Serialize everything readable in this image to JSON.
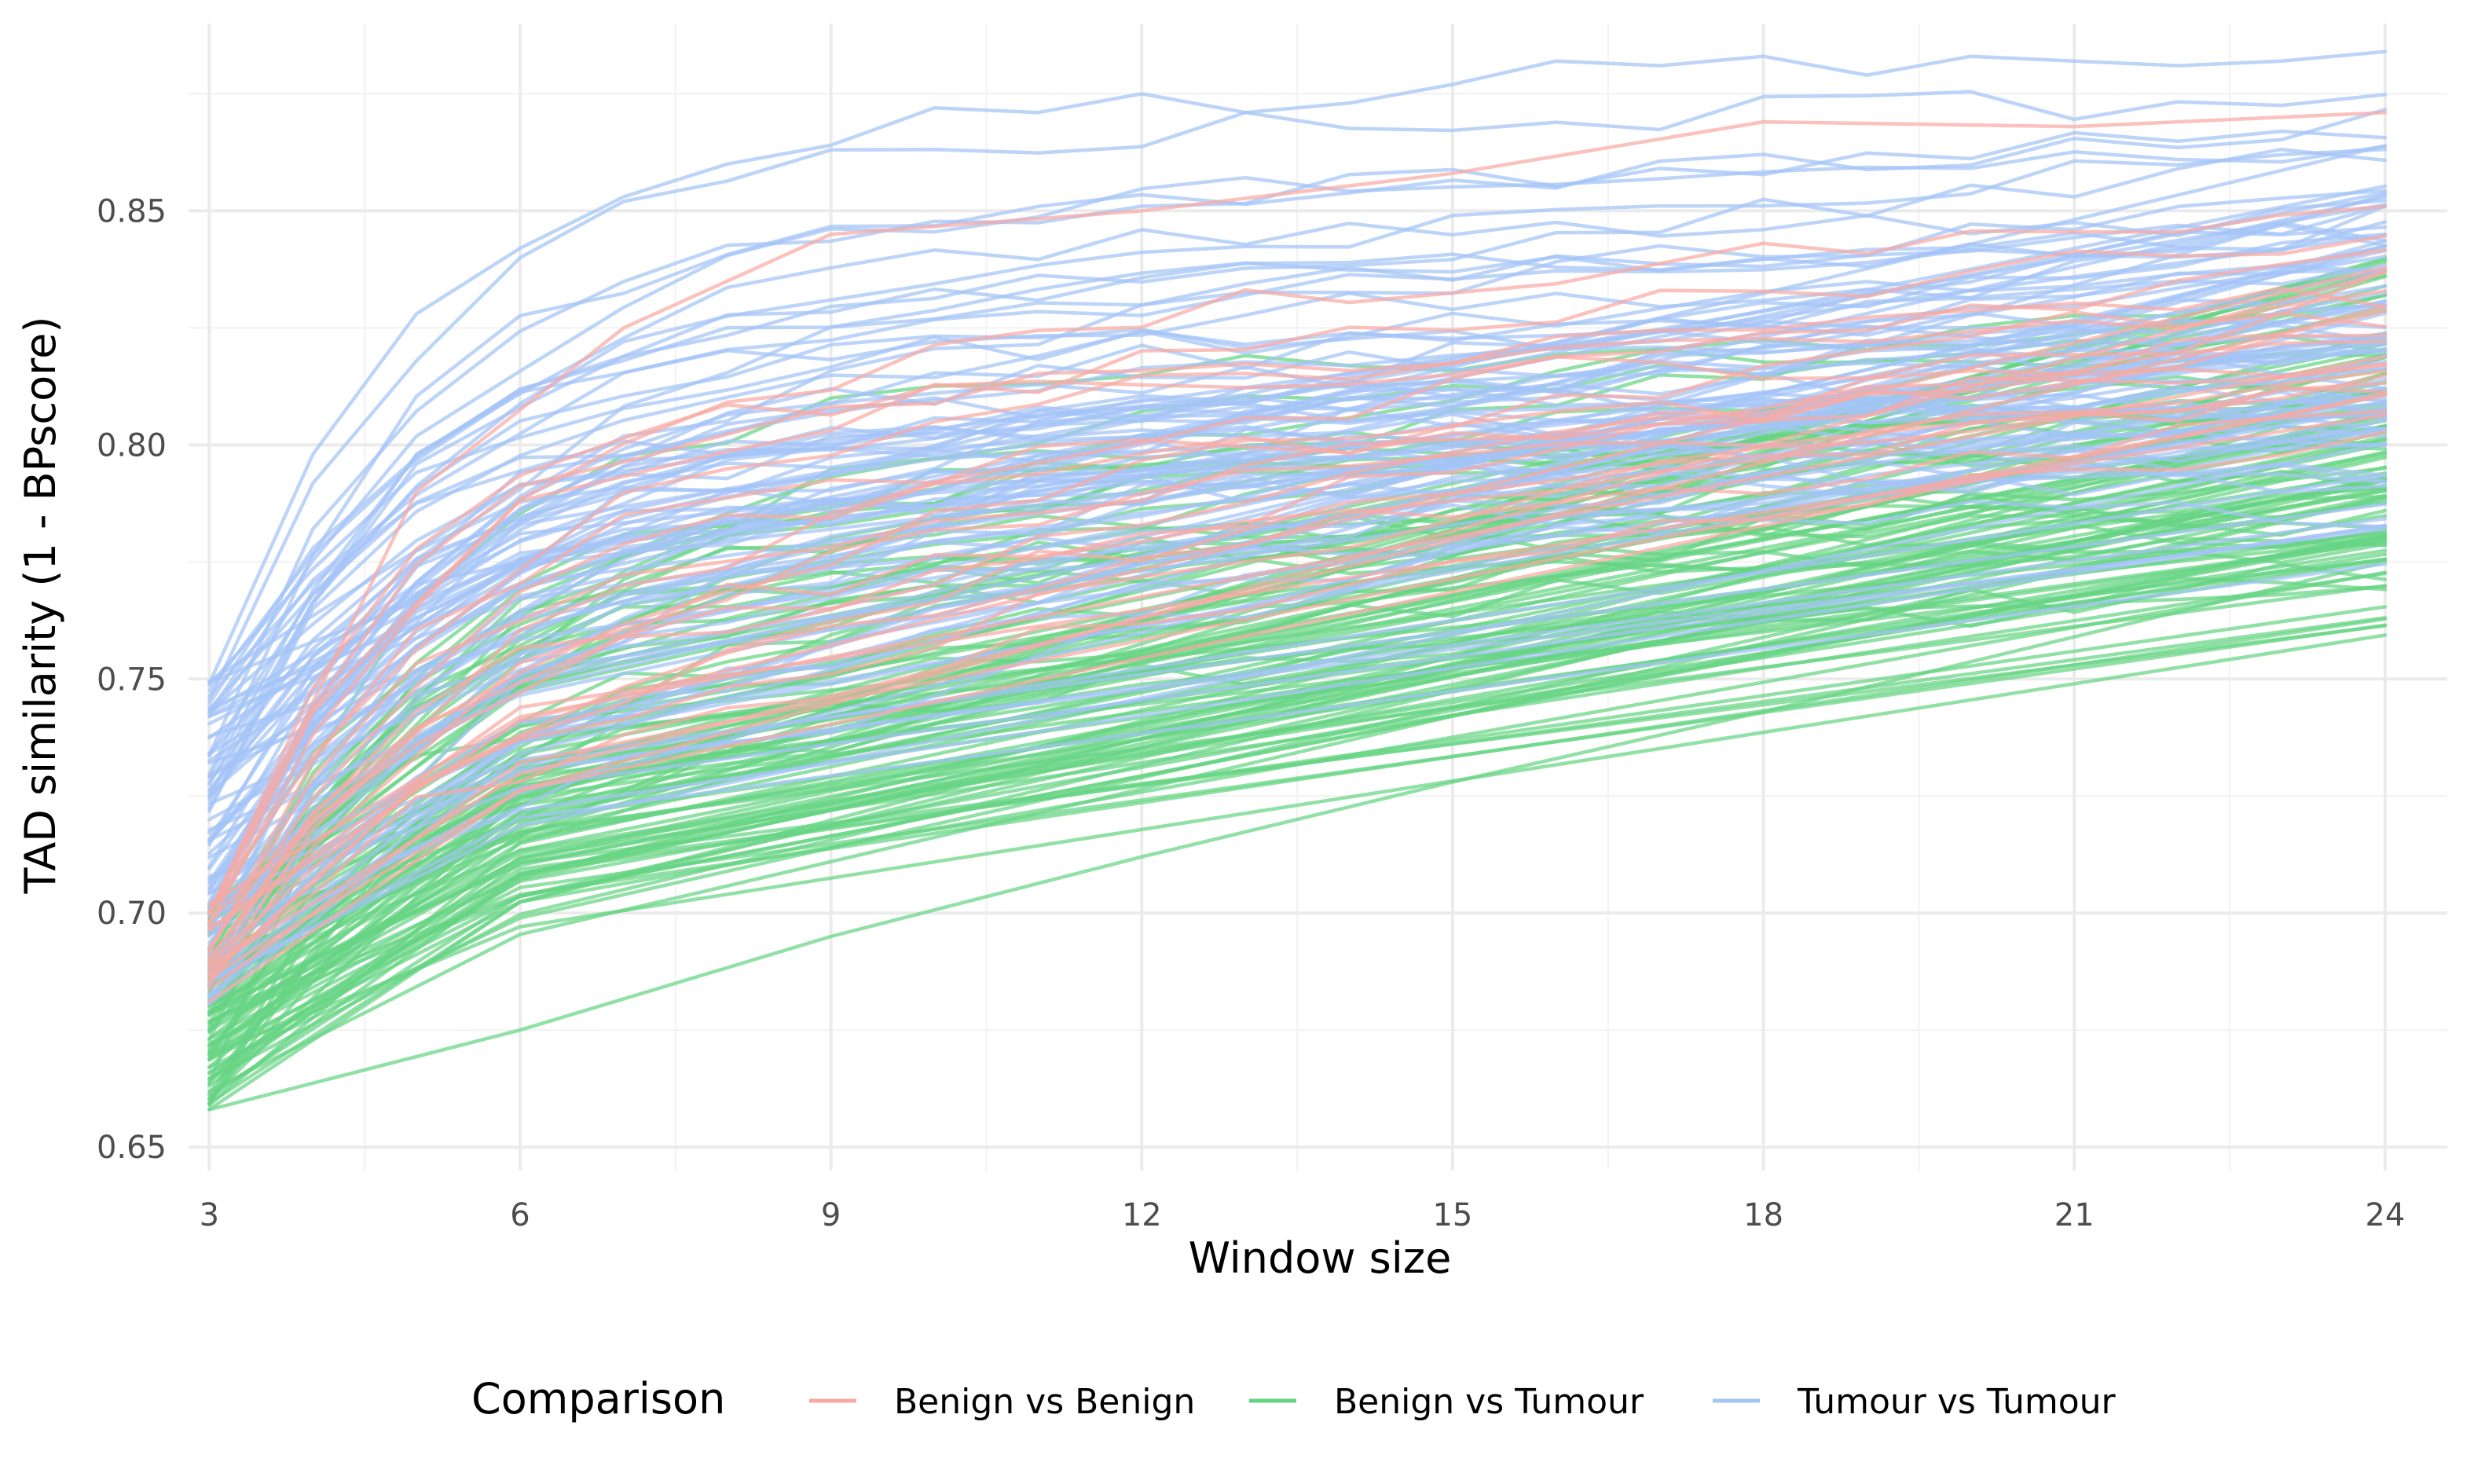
{
  "chart_data": {
    "type": "line",
    "xlabel": "Window size",
    "ylabel": "TAD similarity (1 - BPscore)",
    "xlim": [
      2.8,
      24.6
    ],
    "ylim": [
      0.645,
      0.89
    ],
    "x_ticks": [
      "3",
      "6",
      "9",
      "12",
      "15",
      "18",
      "21",
      "24"
    ],
    "y_ticks": [
      "0.65",
      "0.70",
      "0.75",
      "0.80",
      "0.85"
    ],
    "grid": true,
    "legend": {
      "title": "Comparison",
      "placement": "bottom",
      "entries": [
        {
          "label": "Benign vs Benign",
          "color": "#F8A9A3"
        },
        {
          "label": "Benign vs Tumour",
          "color": "#67D483"
        },
        {
          "label": "Tumour vs Tumour",
          "color": "#A3C4F6"
        }
      ]
    },
    "series_groups": [
      {
        "name": "Benign vs Benign",
        "color": "#F8A9A3",
        "count": 25,
        "start_range": [
          0.68,
          0.702
        ],
        "end_range": [
          0.82,
          0.871
        ],
        "representative": {
          "x": [
            3,
            5,
            7,
            9,
            12,
            15,
            18,
            21,
            24
          ],
          "y": [
            0.7,
            0.79,
            0.825,
            0.845,
            0.85,
            0.858,
            0.869,
            0.868,
            0.871
          ]
        }
      },
      {
        "name": "Benign vs Tumour",
        "color": "#67D483",
        "count": 110,
        "start_range": [
          0.658,
          0.702
        ],
        "end_range": [
          0.775,
          0.86
        ],
        "representative": {
          "x": [
            3,
            6,
            9,
            12,
            15,
            18,
            21,
            24
          ],
          "y": [
            0.658,
            0.675,
            0.695,
            0.712,
            0.728,
            0.743,
            0.759,
            0.775
          ]
        }
      },
      {
        "name": "Tumour vs Tumour",
        "color": "#A3C4F6",
        "count": 95,
        "start_range": [
          0.68,
          0.75
        ],
        "end_range": [
          0.785,
          0.884
        ],
        "representative": {
          "x": [
            3,
            4,
            5,
            6,
            7,
            8,
            9,
            10,
            11,
            12,
            13,
            14,
            15,
            16,
            17,
            18,
            19,
            20,
            21,
            22,
            23,
            24
          ],
          "y": [
            0.749,
            0.798,
            0.828,
            0.842,
            0.853,
            0.86,
            0.864,
            0.872,
            0.871,
            0.875,
            0.871,
            0.873,
            0.877,
            0.882,
            0.881,
            0.883,
            0.879,
            0.883,
            0.882,
            0.881,
            0.882,
            0.884
          ]
        }
      }
    ]
  }
}
